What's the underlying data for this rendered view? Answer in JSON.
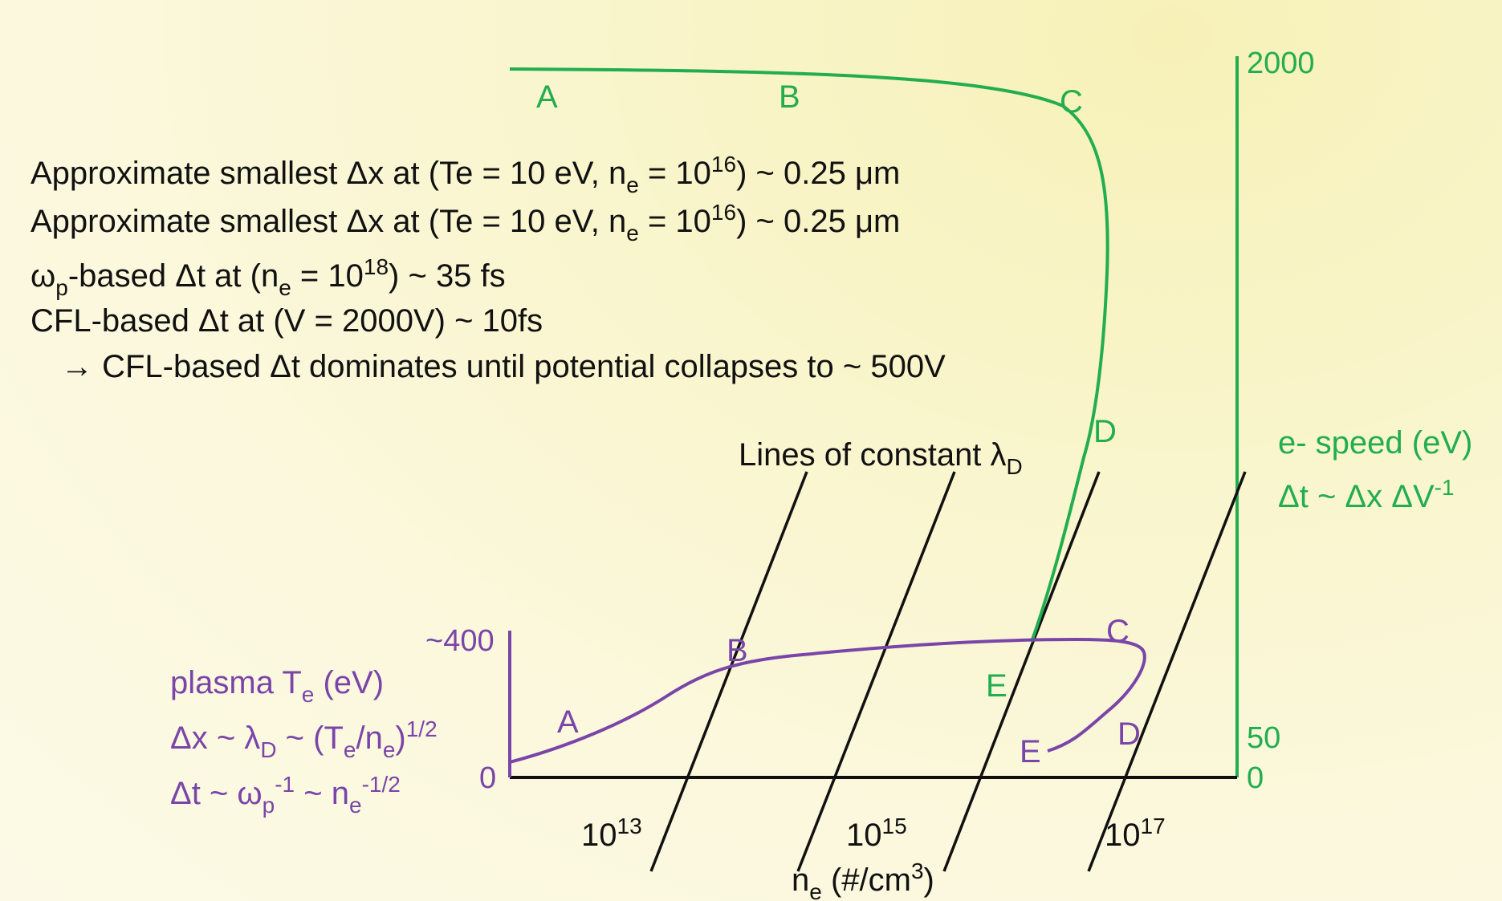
{
  "colors": {
    "green": "#22ad4f",
    "purple": "#7a45a8",
    "black": "#111111"
  },
  "notes": {
    "line1": {
      "pre": "Approximate smallest Δx at (Te = 10 eV, n",
      "sub": "e",
      "mid": " = 10",
      "sup": "16",
      "post": ") ~ 0.25 μm"
    },
    "line2": {
      "pre": "Approximate smallest Δx at (Te = 10 eV, n",
      "sub": "e",
      "mid": " = 10",
      "sup": "16",
      "post": ") ~ 0.25 μm"
    },
    "line3": {
      "pre": "ω",
      "sub": "p",
      "mid": "-based Δt at (n",
      "sub2": "e",
      "mid2": " = 10",
      "sup": "18",
      "post": ") ~ 35 fs"
    },
    "line4": "CFL-based Δt at (V = 2000V) ~ 10fs",
    "line5": "→ CFL-based Δt dominates until potential collapses to ~ 500V"
  },
  "constant_lambda_label": {
    "text": "Lines of constant λ",
    "sub": "D"
  },
  "x_axis": {
    "label_pre": "n",
    "label_sub": "e",
    "label_post": " (#/cm",
    "label_sup": "3",
    "label_end": ")",
    "ticks": [
      {
        "base": "10",
        "exp": "13"
      },
      {
        "base": "10",
        "exp": "15"
      },
      {
        "base": "10",
        "exp": "17"
      }
    ]
  },
  "left_axis": {
    "top": "~400",
    "zero": "0",
    "label": {
      "pre": "plasma T",
      "sub": "e",
      "post": " (eV)"
    },
    "formula1": {
      "a": "Δx ~ λ",
      "a_sub": "D",
      "b": " ~ (T",
      "b_sub": "e",
      "c": "/n",
      "c_sub": "e",
      "d": ")",
      "d_sup": "1/2"
    },
    "formula2": {
      "a": "Δt ~ ω",
      "a_sub": "p",
      "a_sup": "-1",
      "b": " ~ n",
      "b_sub": "e",
      "b_sup": "-1/2"
    }
  },
  "right_axis": {
    "top": "2000",
    "mid": "50",
    "zero": "0",
    "label": "e- speed (eV)",
    "formula": {
      "a": "Δt ~ Δx ΔV",
      "a_sup": "-1"
    }
  },
  "green_points": [
    "A",
    "B",
    "C",
    "D",
    "E"
  ],
  "purple_points": [
    "A",
    "B",
    "C",
    "D",
    "E"
  ]
}
